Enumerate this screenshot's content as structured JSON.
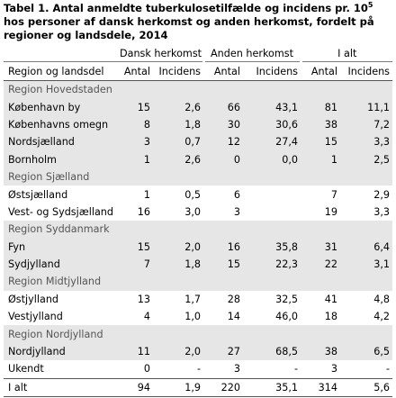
{
  "title_main": "Tabel 1. Antal anmeldte tuberkulosetilfælde og incidens pr. 10",
  "title_sup": "5",
  "title_rest": " hos personer af dansk herkomst og anden herkomst, fordelt på regioner og landsdele, 2014",
  "groups": [
    "Dansk herkomst",
    "Anden herkomst",
    "I alt"
  ],
  "columns": [
    "Region og landsdel",
    "Antal",
    "Incidens",
    "Antal",
    "Incidens",
    "Antal",
    "Incidens"
  ],
  "rows": [
    {
      "type": "region",
      "label": "Region Hovedstaden"
    },
    {
      "type": "data",
      "shade": true,
      "label": "København by",
      "v": [
        "15",
        "2,6",
        "66",
        "43,1",
        "81",
        "11,1"
      ]
    },
    {
      "type": "data",
      "shade": true,
      "label": "Københavns omegn",
      "v": [
        "8",
        "1,8",
        "30",
        "30,6",
        "38",
        "7,2"
      ]
    },
    {
      "type": "data",
      "shade": true,
      "label": "Nordsjælland",
      "v": [
        "3",
        "0,7",
        "12",
        "27,4",
        "15",
        "3,3"
      ]
    },
    {
      "type": "data",
      "shade": true,
      "label": "Bornholm",
      "v": [
        "1",
        "2,6",
        "0",
        "0,0",
        "1",
        "2,5"
      ]
    },
    {
      "type": "region",
      "label": "Region Sjælland"
    },
    {
      "type": "data",
      "shade": false,
      "label": "Østsjælland",
      "v": [
        "1",
        "0,5",
        "6",
        "",
        "7",
        "2,9"
      ]
    },
    {
      "type": "data",
      "shade": false,
      "label": "Vest- og Sydsjælland",
      "v": [
        "16",
        "3,0",
        "3",
        "",
        "19",
        "3,3"
      ]
    },
    {
      "type": "region",
      "label": "Region Syddanmark"
    },
    {
      "type": "data",
      "shade": true,
      "label": "Fyn",
      "v": [
        "15",
        "2,0",
        "16",
        "35,8",
        "31",
        "6,4"
      ]
    },
    {
      "type": "data",
      "shade": true,
      "label": "Sydjylland",
      "v": [
        "7",
        "1,8",
        "15",
        "22,3",
        "22",
        "3,1"
      ]
    },
    {
      "type": "region",
      "label": "Region Midtjylland"
    },
    {
      "type": "data",
      "shade": false,
      "label": "Østjylland",
      "v": [
        "13",
        "1,7",
        "28",
        "32,5",
        "41",
        "4,8"
      ]
    },
    {
      "type": "data",
      "shade": false,
      "label": "Vestjylland",
      "v": [
        "4",
        "1,0",
        "14",
        "46,0",
        "18",
        "4,2"
      ]
    },
    {
      "type": "region",
      "label": "Region Nordjylland"
    },
    {
      "type": "data",
      "shade": true,
      "label": "Nordjylland",
      "v": [
        "11",
        "2,0",
        "27",
        "68,5",
        "38",
        "6,5"
      ]
    },
    {
      "type": "data",
      "shade": false,
      "label": "Ukendt",
      "v": [
        "0",
        "-",
        "3",
        "-",
        "3",
        "-"
      ]
    },
    {
      "type": "total",
      "label": "I alt",
      "v": [
        "94",
        "1,9",
        "220",
        "35,1",
        "314",
        "5,6"
      ]
    }
  ]
}
